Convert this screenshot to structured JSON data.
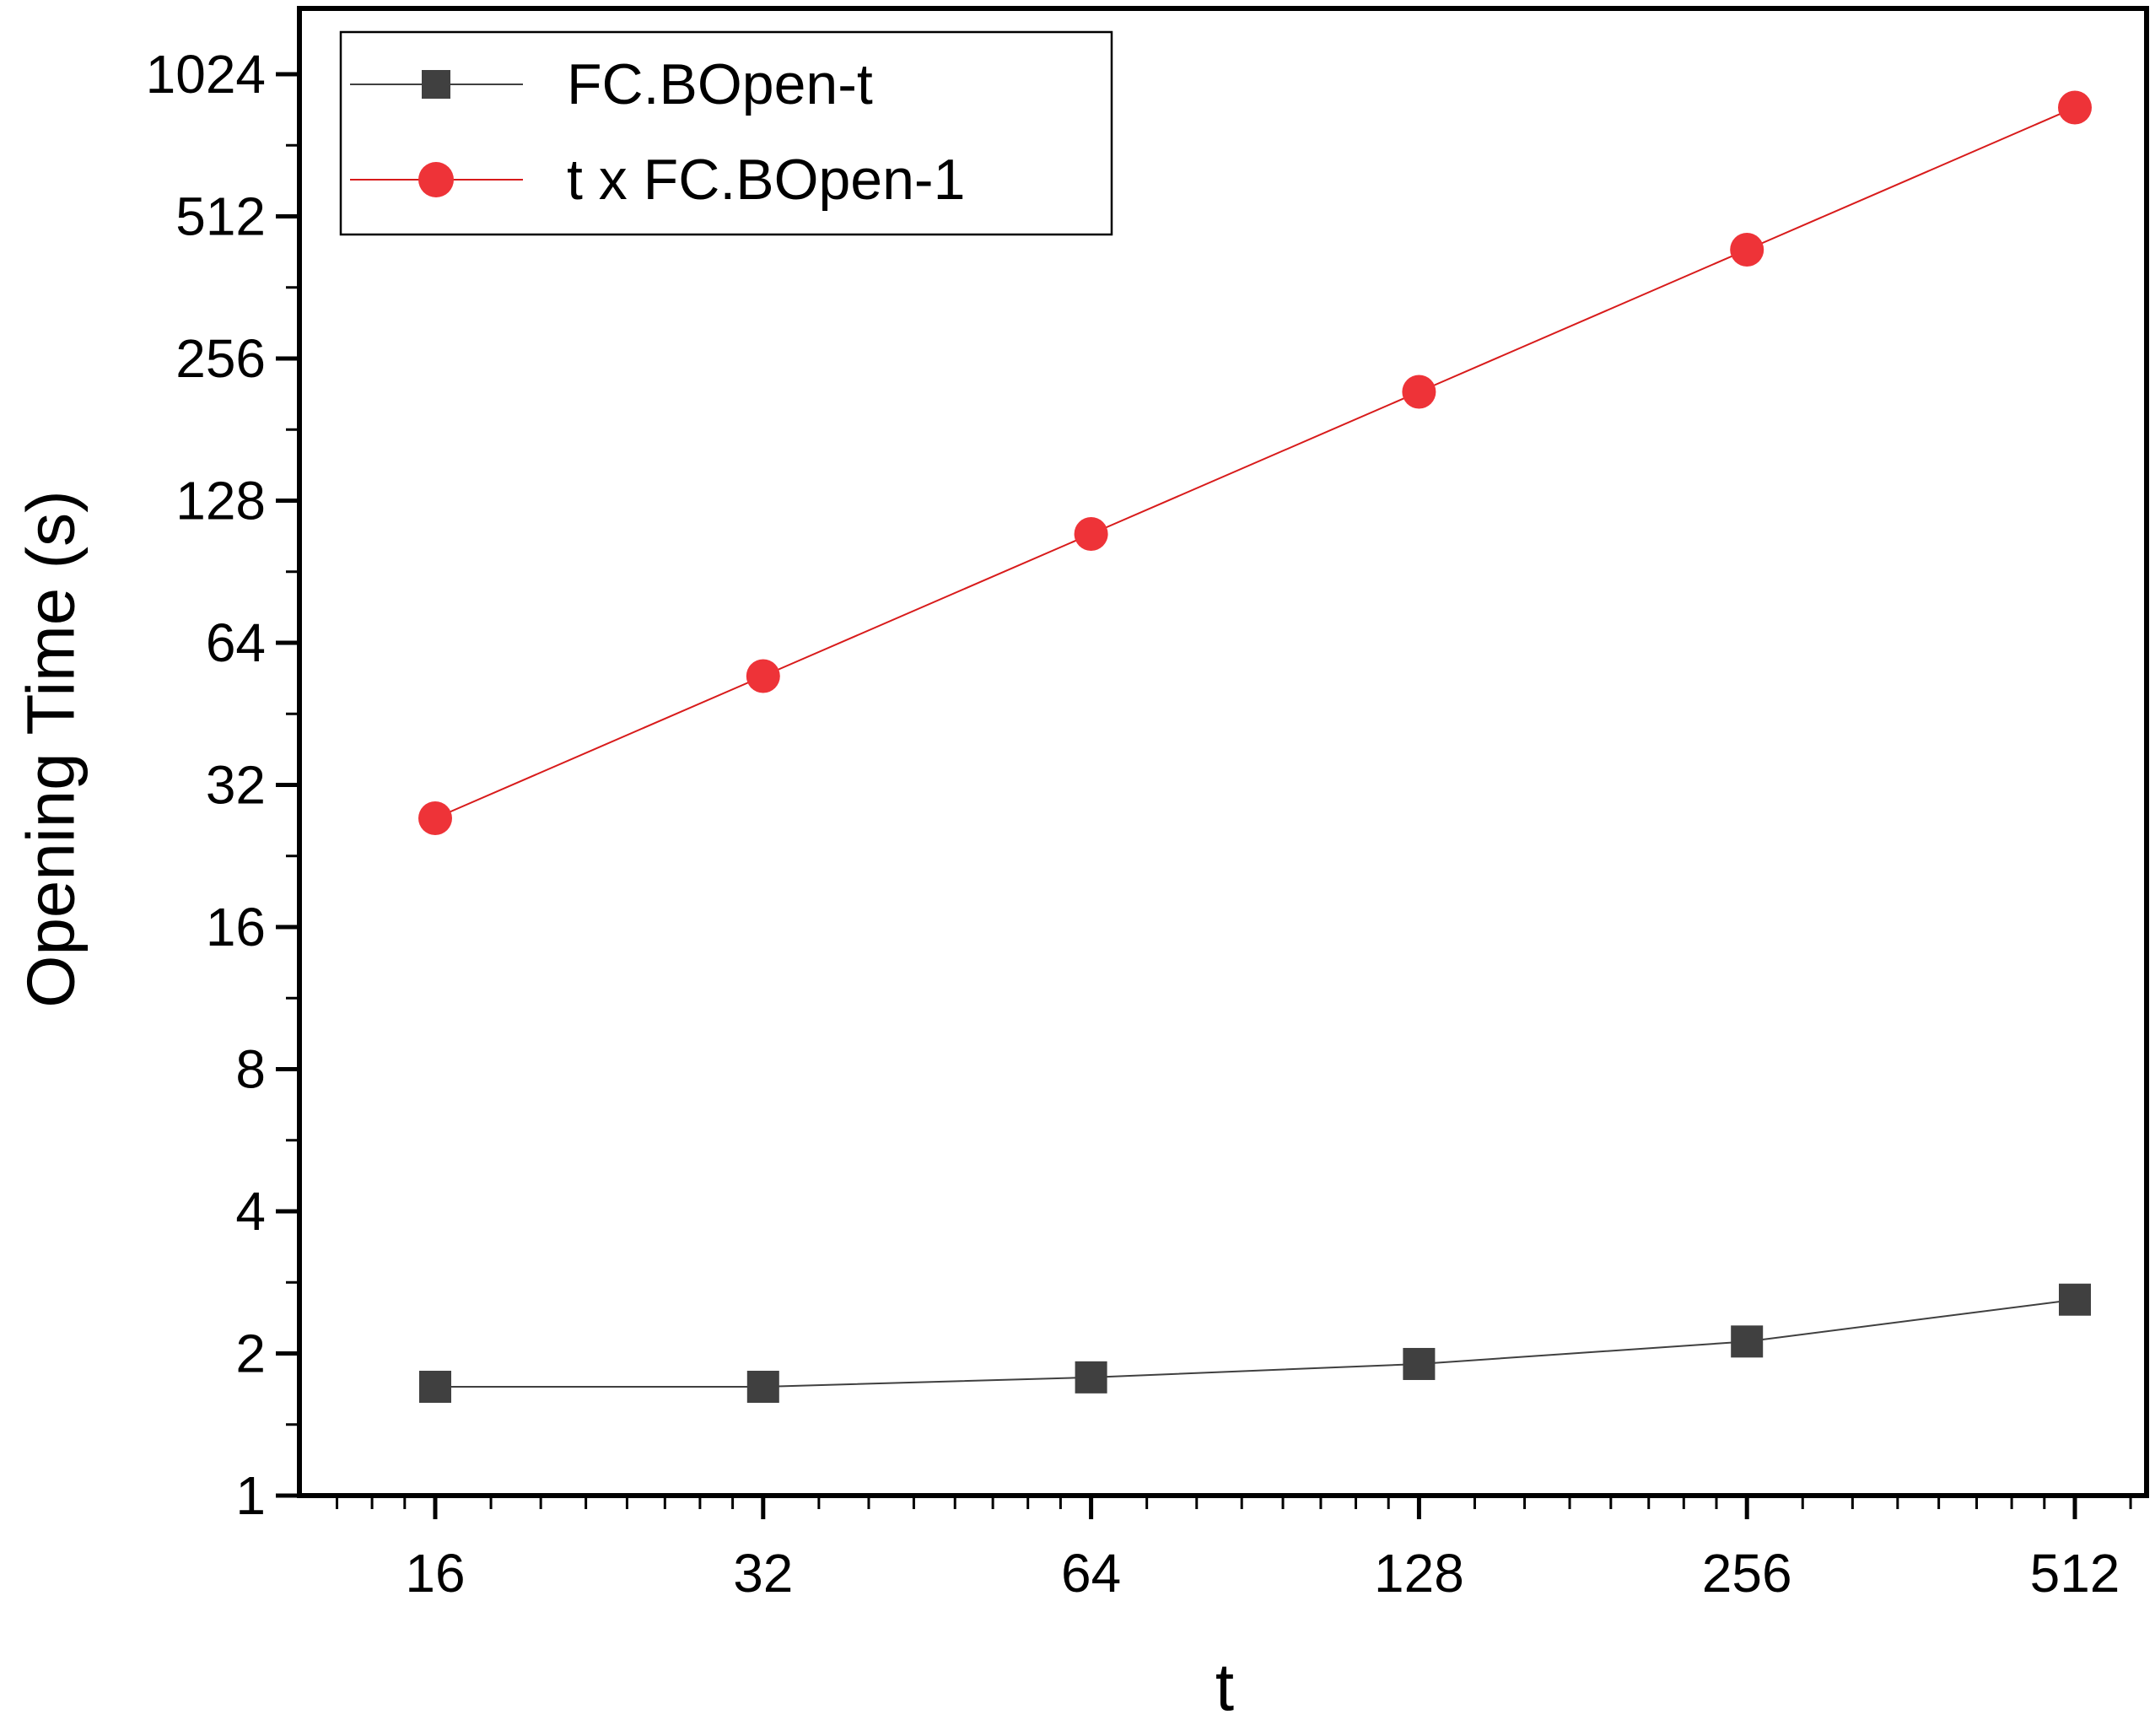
{
  "chart_data": {
    "type": "line",
    "title": "",
    "xlabel": "t",
    "ylabel": "Opening Time (s)",
    "x_scale": "log2",
    "y_scale": "log2",
    "xlim": [
      12,
      600
    ],
    "ylim": [
      1,
      1500
    ],
    "x_ticks": [
      16,
      32,
      64,
      128,
      256,
      512
    ],
    "x_tick_labels": [
      "16",
      "32",
      "64",
      "128",
      "256",
      "512"
    ],
    "y_ticks": [
      1,
      2,
      4,
      8,
      16,
      32,
      64,
      128,
      256,
      512,
      1024
    ],
    "y_tick_labels": [
      "1",
      "2",
      "4",
      "8",
      "16",
      "32",
      "64",
      "128",
      "256",
      "512",
      "1024"
    ],
    "grid": false,
    "legend_position": "top-left",
    "x": [
      16,
      32,
      64,
      128,
      256,
      512
    ],
    "series": [
      {
        "name": "FC.BOpen-t",
        "color": "#404040",
        "line_color": "#404040",
        "marker": "square",
        "values": [
          1.7,
          1.7,
          1.78,
          1.9,
          2.12,
          2.6
        ]
      },
      {
        "name": "t x FC.BOpen-1",
        "color": "#ee3338",
        "line_color": "#d81b1b",
        "marker": "circle",
        "values": [
          27.2,
          54.4,
          108.8,
          217.6,
          435.2,
          870.4
        ]
      }
    ]
  }
}
